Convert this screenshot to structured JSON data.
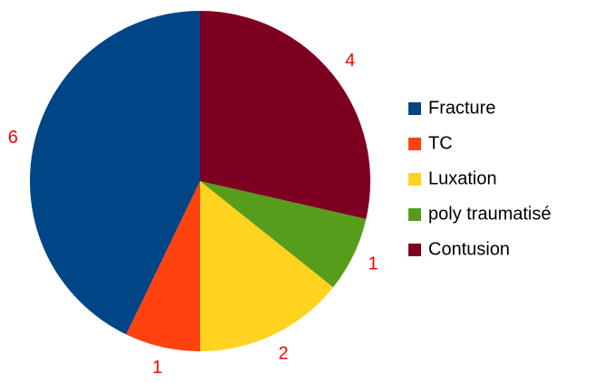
{
  "chart_data": {
    "type": "pie",
    "categories": [
      "Fracture",
      "TC",
      "Luxation",
      "poly traumatisé",
      "Contusion"
    ],
    "values": [
      6,
      1,
      2,
      1,
      4
    ],
    "colors": [
      "#004586",
      "#ff420e",
      "#ffd320",
      "#579d1c",
      "#7e0021"
    ],
    "legend": "right"
  }
}
